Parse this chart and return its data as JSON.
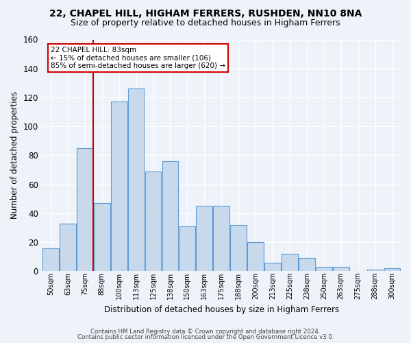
{
  "title1": "22, CHAPEL HILL, HIGHAM FERRERS, RUSHDEN, NN10 8NA",
  "title2": "Size of property relative to detached houses in Higham Ferrers",
  "xlabel": "Distribution of detached houses by size in Higham Ferrers",
  "ylabel": "Number of detached properties",
  "footer1": "Contains HM Land Registry data © Crown copyright and database right 2024.",
  "footer2": "Contains public sector information licensed under the Open Government Licence v3.0.",
  "annotation_title": "22 CHAPEL HILL: 83sqm",
  "annotation_line1": "← 15% of detached houses are smaller (106)",
  "annotation_line2": "85% of semi-detached houses are larger (620) →",
  "bar_labels": [
    "50sqm",
    "63sqm",
    "75sqm",
    "88sqm",
    "100sqm",
    "113sqm",
    "125sqm",
    "138sqm",
    "150sqm",
    "163sqm",
    "175sqm",
    "188sqm",
    "200sqm",
    "213sqm",
    "225sqm",
    "238sqm",
    "250sqm",
    "263sqm",
    "275sqm",
    "288sqm",
    "300sqm"
  ],
  "bar_values": [
    16,
    33,
    85,
    47,
    117,
    126,
    69,
    76,
    31,
    45,
    45,
    32,
    20,
    6,
    12,
    9,
    3,
    3,
    0,
    1,
    2
  ],
  "bar_color": "#c9d9ec",
  "bar_edge_color": "#5b9bd5",
  "vline_color": "#cc0000",
  "ylim": [
    0,
    160
  ],
  "yticks": [
    0,
    20,
    40,
    60,
    80,
    100,
    120,
    140,
    160
  ],
  "bg_color": "#eef2f9",
  "grid_color": "#ffffff",
  "annotation_box_color": "#ffffff",
  "annotation_box_edge": "#cc0000",
  "title1_fontsize": 10,
  "title2_fontsize": 9
}
